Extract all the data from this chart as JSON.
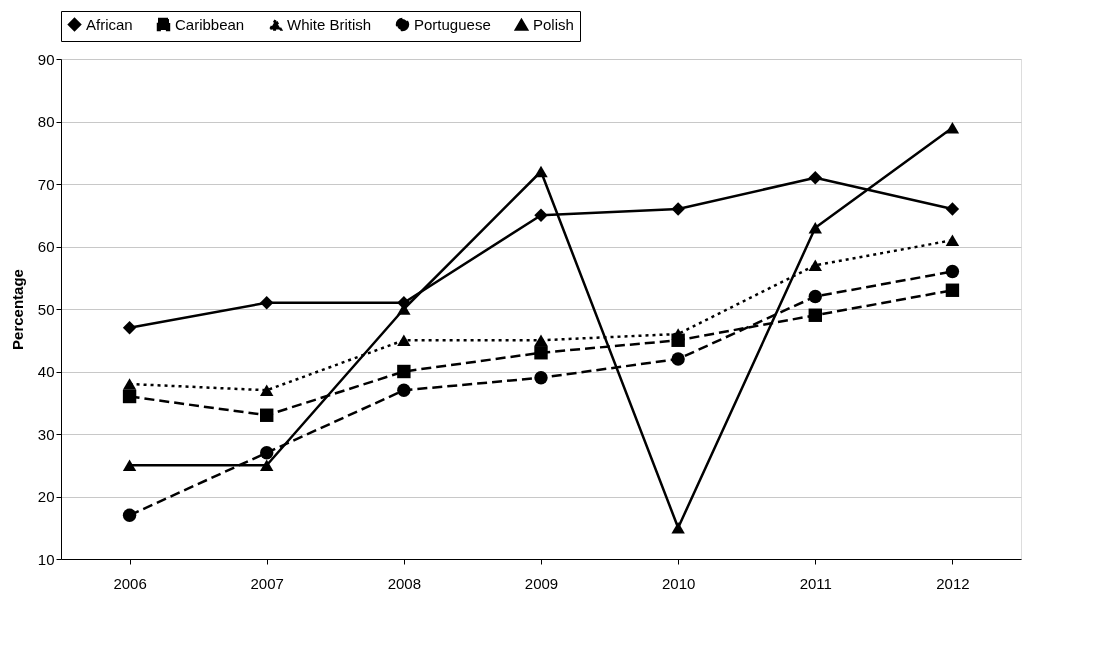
{
  "chart_data": {
    "type": "line",
    "ylabel": "Percentage",
    "categories": [
      "2006",
      "2007",
      "2008",
      "2009",
      "2010",
      "2011",
      "2012"
    ],
    "ylim": [
      10,
      90
    ],
    "yticks": [
      10,
      20,
      30,
      40,
      50,
      60,
      70,
      80,
      90
    ],
    "grid": "y",
    "legend": "top",
    "series": [
      {
        "name": "African",
        "color": "#000000",
        "marker": "diamond",
        "line_style": "solid",
        "values": [
          47,
          51,
          51,
          65,
          66,
          71,
          66
        ]
      },
      {
        "name": "Caribbean",
        "color": "#000000",
        "marker": "square",
        "line_style": "dashed",
        "values": [
          36,
          33,
          40,
          43,
          45,
          49,
          53
        ]
      },
      {
        "name": "White British",
        "color": "#000000",
        "marker": "triangle",
        "line_style": "dotted",
        "values": [
          38,
          37,
          45,
          45,
          46,
          57,
          61
        ]
      },
      {
        "name": "Portuguese",
        "color": "#000000",
        "marker": "circle",
        "line_style": "dashed",
        "values": [
          17,
          27,
          37,
          39,
          42,
          52,
          56
        ]
      },
      {
        "name": "Polish",
        "color": "#000000",
        "marker": "triangle",
        "line_style": "solid",
        "values": [
          25,
          25,
          50,
          72,
          15,
          63,
          79
        ]
      }
    ]
  }
}
